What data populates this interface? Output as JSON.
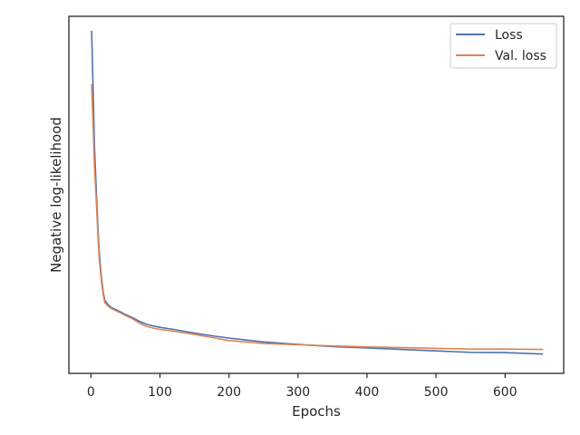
{
  "chart_data": {
    "type": "line",
    "title": "",
    "xlabel": "Epochs",
    "ylabel": "Negative log-likelihood",
    "xlim": [
      -32,
      685
    ],
    "ylim": [
      0,
      1.0
    ],
    "xticks": [
      0,
      100,
      200,
      300,
      400,
      500,
      600
    ],
    "yticks_shown": false,
    "grid": false,
    "legend": {
      "position": "top-right"
    },
    "series": [
      {
        "name": "Loss",
        "color": "#4c72b0",
        "x": [
          1,
          3,
          5,
          8,
          10,
          12,
          15,
          18,
          20,
          25,
          30,
          40,
          50,
          60,
          70,
          80,
          90,
          100,
          120,
          150,
          180,
          200,
          250,
          300,
          350,
          400,
          450,
          500,
          550,
          600,
          655
        ],
        "y": [
          0.96,
          0.8,
          0.64,
          0.5,
          0.41,
          0.34,
          0.27,
          0.225,
          0.205,
          0.192,
          0.184,
          0.175,
          0.165,
          0.156,
          0.146,
          0.138,
          0.133,
          0.129,
          0.123,
          0.113,
          0.104,
          0.099,
          0.088,
          0.081,
          0.075,
          0.071,
          0.067,
          0.063,
          0.059,
          0.058,
          0.054
        ]
      },
      {
        "name": "Val. loss",
        "color": "#dd8452",
        "x": [
          1,
          3,
          5,
          8,
          10,
          12,
          15,
          18,
          20,
          25,
          30,
          40,
          50,
          60,
          70,
          80,
          90,
          100,
          120,
          150,
          180,
          200,
          250,
          300,
          350,
          400,
          450,
          500,
          550,
          600,
          655
        ],
        "y": [
          0.81,
          0.7,
          0.58,
          0.47,
          0.39,
          0.32,
          0.26,
          0.218,
          0.198,
          0.188,
          0.181,
          0.172,
          0.162,
          0.153,
          0.141,
          0.132,
          0.127,
          0.123,
          0.118,
          0.109,
          0.099,
          0.092,
          0.084,
          0.08,
          0.077,
          0.074,
          0.072,
          0.07,
          0.068,
          0.068,
          0.067
        ]
      }
    ]
  }
}
